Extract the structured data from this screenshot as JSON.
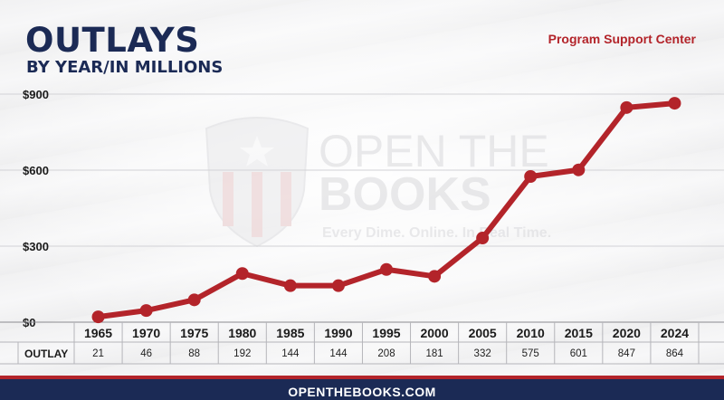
{
  "header": {
    "title": "OUTLAYS",
    "subtitle": "BY YEAR/IN MILLIONS",
    "source": "Program Support Center"
  },
  "watermark": {
    "line1": "OPEN THE",
    "line2": "BOOKS",
    "tagline": "Every Dime. Online. In Real Time."
  },
  "footer": {
    "text": "OPENTHEBOOKS.COM"
  },
  "colors": {
    "line": "#b3242a",
    "navy": "#1b2a55",
    "accent_red": "#b3242a"
  },
  "chart_data": {
    "type": "line",
    "title": "OUTLAYS",
    "subtitle": "BY YEAR/IN MILLIONS",
    "x": [
      "1965",
      "1970",
      "1975",
      "1980",
      "1985",
      "1990",
      "1995",
      "2000",
      "2005",
      "2010",
      "2015",
      "2020",
      "2024"
    ],
    "values": [
      21,
      46,
      88,
      192,
      144,
      144,
      208,
      181,
      332,
      575,
      601,
      847,
      864
    ],
    "ylim": [
      0,
      900
    ],
    "yticks": [
      0,
      300,
      600,
      900
    ],
    "ytick_labels": [
      "$0",
      "$300",
      "$600",
      "$900"
    ],
    "grid": true,
    "table_row_label": "OUTLAY",
    "table_values": [
      "21",
      "46",
      "88",
      "192",
      "144",
      "144",
      "208",
      "181",
      "332",
      "575",
      "601",
      "847",
      "864"
    ]
  }
}
